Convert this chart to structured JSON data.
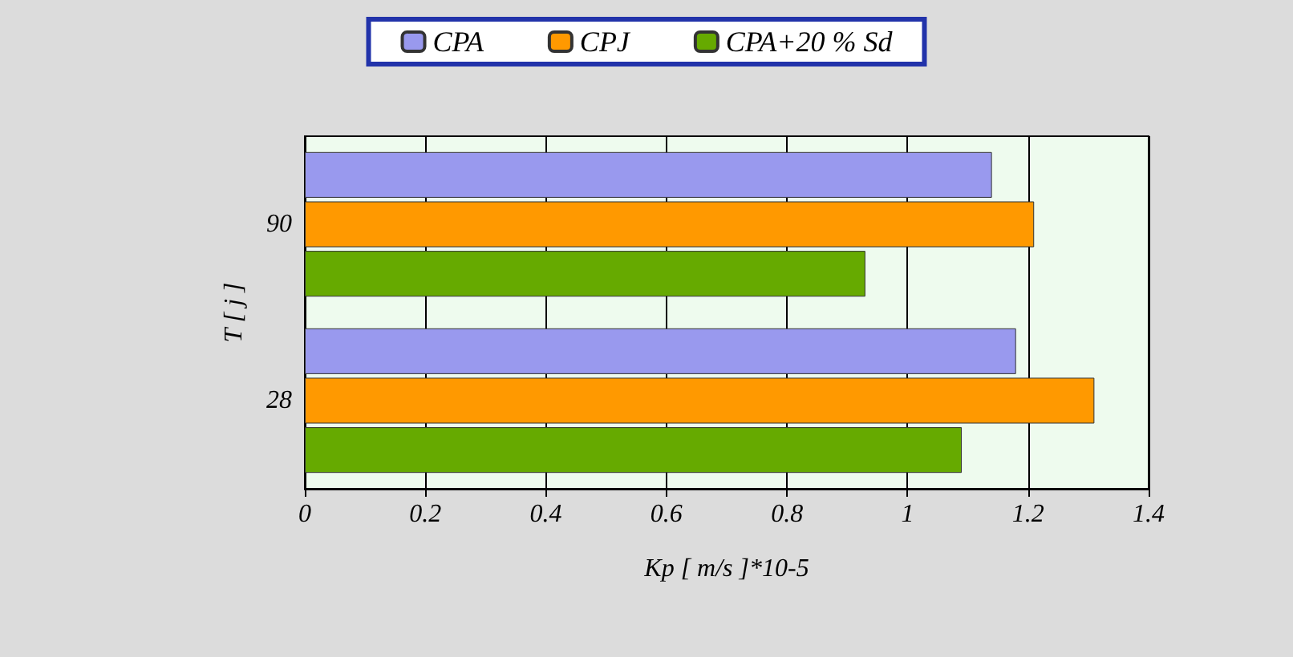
{
  "chart_data": {
    "type": "bar",
    "orientation": "horizontal",
    "xlabel": "Kp [ m/s ]*10-5",
    "ylabel": "T [ j ]",
    "categories": [
      "90",
      "28"
    ],
    "series": [
      {
        "name": "CPA",
        "color": "#9999ee",
        "values": [
          1.14,
          1.18
        ]
      },
      {
        "name": "CPJ",
        "color": "#ff9900",
        "values": [
          1.21,
          1.31
        ]
      },
      {
        "name": "CPA+20 % Sd",
        "color": "#66aa00",
        "values": [
          0.93,
          1.09
        ]
      }
    ],
    "xlim": [
      0,
      1.4
    ],
    "xticks": [
      0,
      0.2,
      0.4,
      0.6,
      0.8,
      1,
      1.2,
      1.4
    ],
    "grid": "x",
    "legend": "top"
  }
}
